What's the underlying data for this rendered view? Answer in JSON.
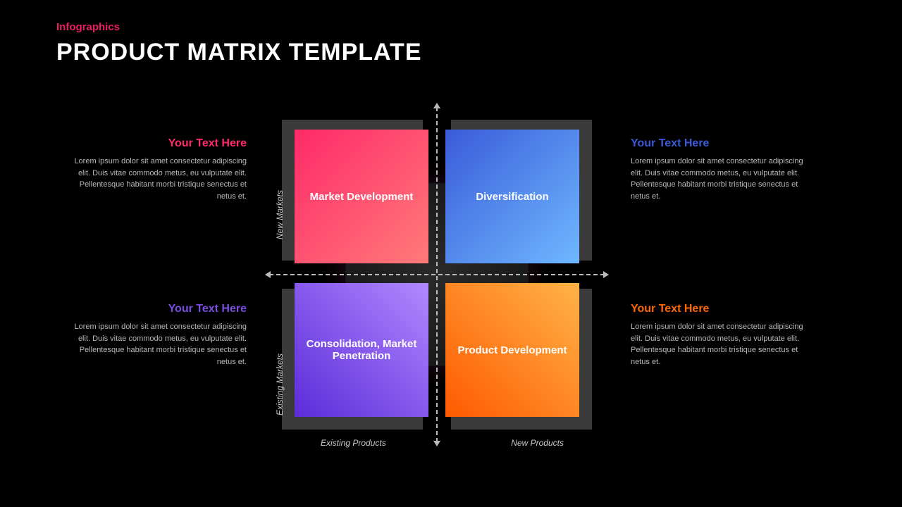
{
  "header": {
    "subtitle": "Infographics",
    "subtitle_color": "#e91e63",
    "title": "PRODUCT MATRIX TEMPLATE",
    "title_color": "#ffffff"
  },
  "background_color": "#000000",
  "matrix": {
    "type": "2x2-matrix",
    "frame_color": "#3a3a3a",
    "axis_color": "#bbbbbb",
    "y_axis": {
      "top_label": "New Markets",
      "bottom_label": "Existing Markets"
    },
    "x_axis": {
      "left_label": "Existing Products",
      "right_label": "New Products"
    },
    "quadrants": {
      "top_left": {
        "label": "Market Development",
        "gradient_from": "#ff2a68",
        "gradient_to": "#ff7a7a"
      },
      "top_right": {
        "label": "Diversification",
        "gradient_from": "#3a5bd9",
        "gradient_to": "#6fb8ff"
      },
      "bottom_left": {
        "label": "Consolidation, Market Penetration",
        "gradient_from": "#5b2bd9",
        "gradient_to": "#b288ff"
      },
      "bottom_right": {
        "label": "Product Development",
        "gradient_from": "#ff5a00",
        "gradient_to": "#ffb347"
      }
    }
  },
  "textblocks": {
    "top_left": {
      "heading": "Your Text Here",
      "heading_color": "#ff2a68",
      "body": "Lorem ipsum dolor sit amet consectetur adipiscing elit. Duis vitae commodo metus, eu vulputate elit. Pellentesque habitant morbi tristique senectus et netus et."
    },
    "top_right": {
      "heading": "Your Text Here",
      "heading_color": "#3a5bd9",
      "body": "Lorem ipsum dolor sit amet consectetur adipiscing elit. Duis vitae commodo metus, eu vulputate elit. Pellentesque habitant morbi tristique senectus et netus et."
    },
    "bottom_left": {
      "heading": "Your Text Here",
      "heading_color": "#7a4de0",
      "body": "Lorem ipsum dolor sit amet consectetur adipiscing elit. Duis vitae commodo metus, eu vulputate elit. Pellentesque habitant morbi tristique senectus et netus et."
    },
    "bottom_right": {
      "heading": "Your Text Here",
      "heading_color": "#ff6a00",
      "body": "Lorem ipsum dolor sit amet consectetur adipiscing elit. Duis vitae commodo metus, eu vulputate elit. Pellentesque habitant morbi tristique senectus et netus et."
    }
  }
}
